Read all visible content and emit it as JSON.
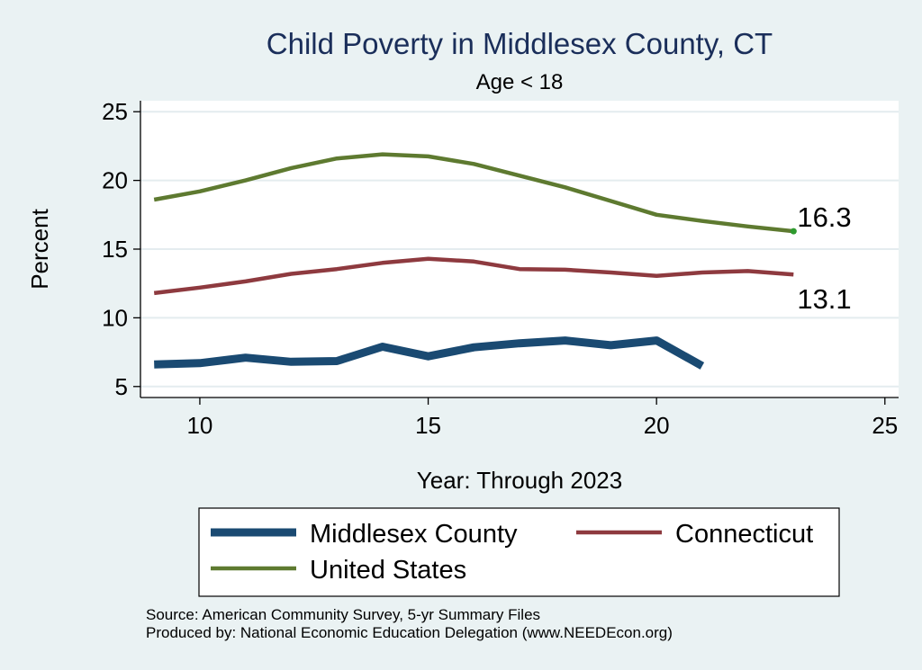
{
  "chart_data": {
    "type": "line",
    "title": "Child Poverty in Middlesex County, CT",
    "subtitle": "Age < 18",
    "xlabel": "Year: Through 2023",
    "ylabel": "Percent",
    "xlim": [
      8.7,
      25.3
    ],
    "ylim": [
      4.2,
      25.8
    ],
    "xticks": [
      10,
      15,
      20,
      25
    ],
    "yticks": [
      5,
      10,
      15,
      20,
      25
    ],
    "grid": "horizontal",
    "legend_position": "bottom",
    "series": [
      {
        "name": "Middlesex County",
        "color": "#1a4a72",
        "style": "thick",
        "x": [
          9,
          10,
          11,
          12,
          13,
          14,
          15,
          16,
          17,
          18,
          19,
          20,
          21
        ],
        "y": [
          6.6,
          6.7,
          7.1,
          6.8,
          6.85,
          7.9,
          7.2,
          7.85,
          8.15,
          8.35,
          8.0,
          8.35,
          6.5
        ]
      },
      {
        "name": "Connecticut",
        "color": "#8e3a3f",
        "style": "normal",
        "x": [
          9,
          10,
          11,
          12,
          13,
          14,
          15,
          16,
          17,
          18,
          19,
          20,
          21,
          22,
          23
        ],
        "y": [
          11.8,
          12.2,
          12.65,
          13.2,
          13.55,
          14.0,
          14.3,
          14.1,
          13.55,
          13.5,
          13.3,
          13.05,
          13.3,
          13.4,
          13.15
        ]
      },
      {
        "name": "United States",
        "color": "#5e7a30",
        "style": "normal",
        "x": [
          9,
          10,
          11,
          12,
          13,
          14,
          15,
          16,
          17,
          18,
          19,
          20,
          21,
          22,
          23
        ],
        "y": [
          18.6,
          19.2,
          20.0,
          20.9,
          21.6,
          21.9,
          21.75,
          21.2,
          20.35,
          19.5,
          18.5,
          17.5,
          17.05,
          16.65,
          16.3
        ]
      }
    ],
    "annotations": [
      {
        "text": "16.3",
        "series": "United States",
        "x": 23,
        "y": 16.3
      },
      {
        "text": "13.1",
        "series": "Connecticut",
        "x": 23,
        "y": 13.1
      }
    ],
    "notes": [
      "Source: American Community Survey, 5-yr Summary Files",
      "Produced by: National Economic Education Delegation (www.NEEDEcon.org)"
    ]
  }
}
